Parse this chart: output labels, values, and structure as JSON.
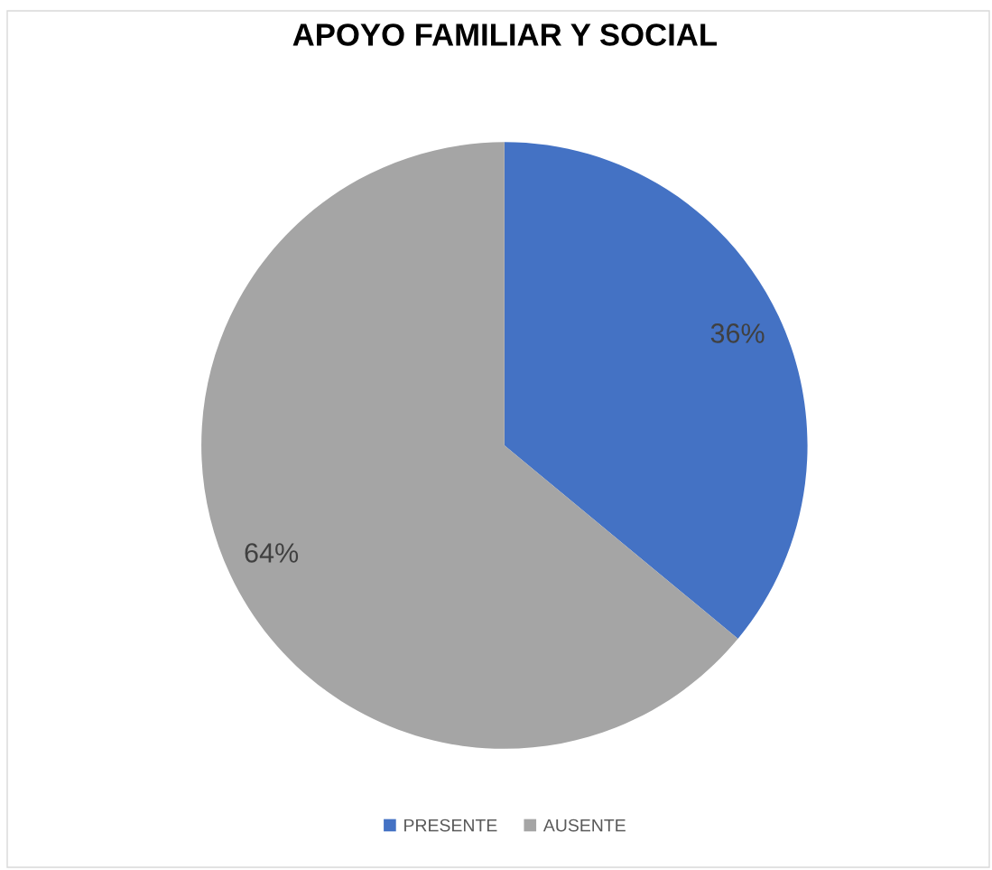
{
  "chart_data": {
    "type": "pie",
    "title": "APOYO FAMILIAR Y SOCIAL",
    "categories": [
      "PRESENTE",
      "AUSENTE"
    ],
    "values": [
      36,
      64
    ],
    "colors": [
      "#4472c4",
      "#a5a5a5"
    ],
    "value_labels": [
      "36%",
      "64%"
    ],
    "legend": "bottom"
  }
}
